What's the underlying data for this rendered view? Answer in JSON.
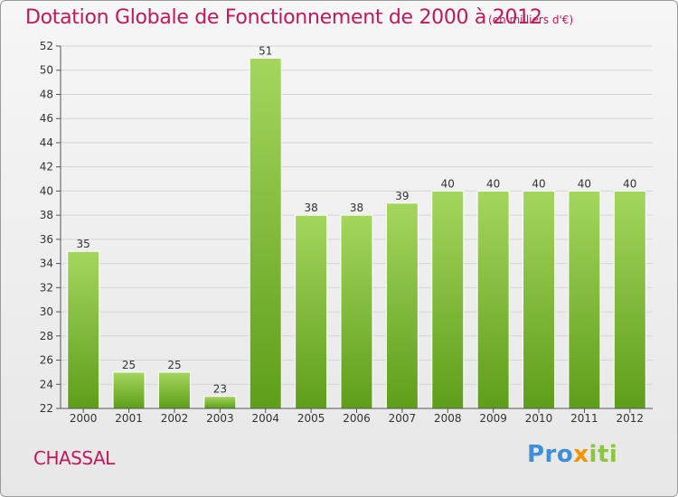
{
  "title": "Dotation Globale de Fonctionnement de 2000 à 2012",
  "subtitle": "(en milliers d'€)",
  "town": "CHASSAL",
  "logo": {
    "part1": "Pro",
    "part2": "x",
    "part3": "iti"
  },
  "colors": {
    "title": "#c2185b",
    "bar_light": "#a4d65e",
    "bar_dark": "#5e9e1a",
    "grid": "#d4d4d4",
    "axis": "#555555"
  },
  "chart_data": {
    "type": "bar",
    "categories": [
      "2000",
      "2001",
      "2002",
      "2003",
      "2004",
      "2005",
      "2006",
      "2007",
      "2008",
      "2009",
      "2010",
      "2011",
      "2012"
    ],
    "values": [
      35,
      25,
      25,
      23,
      51,
      38,
      38,
      39,
      40,
      40,
      40,
      40,
      40
    ],
    "ylim": [
      22,
      52
    ],
    "yticks": [
      22,
      24,
      26,
      28,
      30,
      32,
      34,
      36,
      38,
      40,
      42,
      44,
      46,
      48,
      50,
      52
    ],
    "grid": true,
    "title": "Dotation Globale de Fonctionnement de 2000 à 2012",
    "xlabel": "",
    "ylabel": ""
  }
}
